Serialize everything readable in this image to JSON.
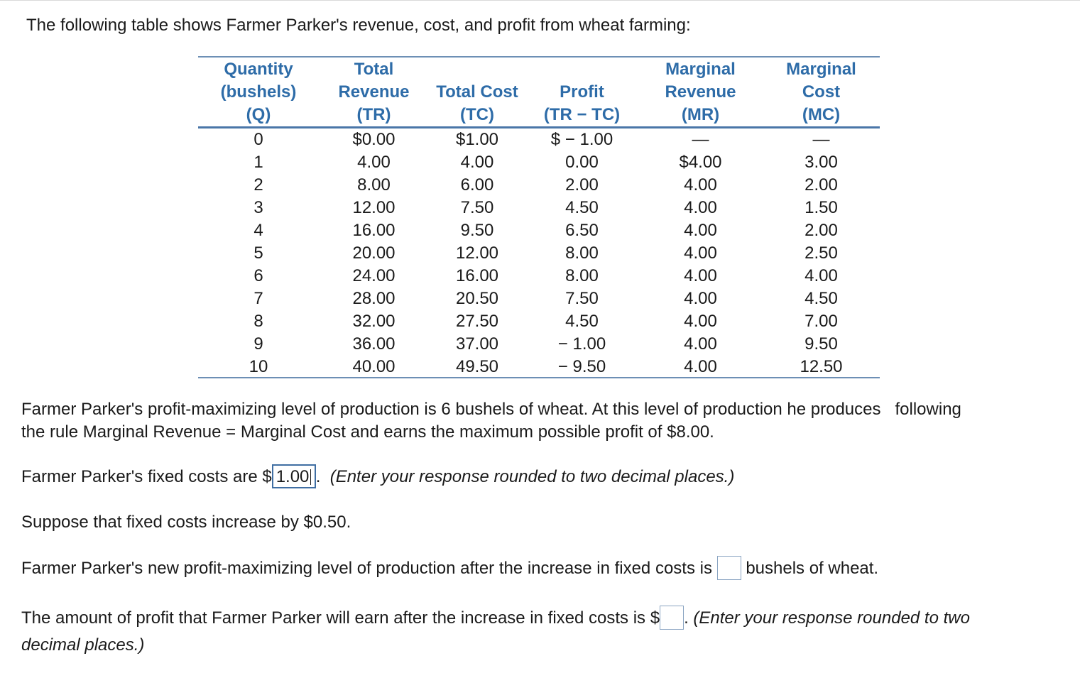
{
  "intro": "The following table shows Farmer Parker's revenue, cost, and profit from wheat farming:",
  "table": {
    "headers": [
      [
        "Quantity",
        "(bushels)",
        "(Q)"
      ],
      [
        "Total",
        "Revenue",
        "(TR)"
      ],
      [
        "Total Cost",
        "(TC)"
      ],
      [
        "Profit",
        "(TR − TC)"
      ],
      [
        "Marginal",
        "Revenue",
        "(MR)"
      ],
      [
        "Marginal",
        "Cost",
        "(MC)"
      ]
    ],
    "rows": [
      [
        "0",
        "$0.00",
        "$1.00",
        "$ − 1.00",
        "—",
        "—"
      ],
      [
        "1",
        "4.00",
        "4.00",
        "0.00",
        "$4.00",
        "3.00"
      ],
      [
        "2",
        "8.00",
        "6.00",
        "2.00",
        "4.00",
        "2.00"
      ],
      [
        "3",
        "12.00",
        "7.50",
        "4.50",
        "4.00",
        "1.50"
      ],
      [
        "4",
        "16.00",
        "9.50",
        "6.50",
        "4.00",
        "2.00"
      ],
      [
        "5",
        "20.00",
        "12.00",
        "8.00",
        "4.00",
        "2.50"
      ],
      [
        "6",
        "24.00",
        "16.00",
        "8.00",
        "4.00",
        "4.00"
      ],
      [
        "7",
        "28.00",
        "20.50",
        "7.50",
        "4.00",
        "4.50"
      ],
      [
        "8",
        "32.00",
        "27.50",
        "4.50",
        "4.00",
        "7.00"
      ],
      [
        "9",
        "36.00",
        "37.00",
        "− 1.00",
        "4.00",
        "9.50"
      ],
      [
        "10",
        "40.00",
        "49.50",
        "− 9.50",
        "4.00",
        "12.50"
      ]
    ]
  },
  "paragraph1": {
    "line1_a": "Farmer Parker's profit-maximizing level of production is 6 bushels of wheat. At this level of production he produces",
    "line1_b": "following",
    "line2": "the rule Marginal Revenue = Marginal Cost and earns the maximum possible profit of $8.00."
  },
  "q1": {
    "prefix": "Farmer Parker's fixed costs are $",
    "answer_value": "1.00",
    "suffix": ".",
    "hint": "(Enter your response rounded to two decimal places.)"
  },
  "statement": "Suppose that fixed costs increase by $0.50.",
  "q2": {
    "prefix": "Farmer Parker's new profit-maximizing level of production after the increase in fixed costs is",
    "answer_value": "",
    "suffix": "bushels of wheat."
  },
  "q3": {
    "prefix": "The amount of profit that Farmer Parker will earn after the increase in fixed costs is $",
    "answer_value": "",
    "suffix": ".",
    "hint_line1": "(Enter your response rounded to two",
    "hint_line2": "decimal places.)"
  }
}
